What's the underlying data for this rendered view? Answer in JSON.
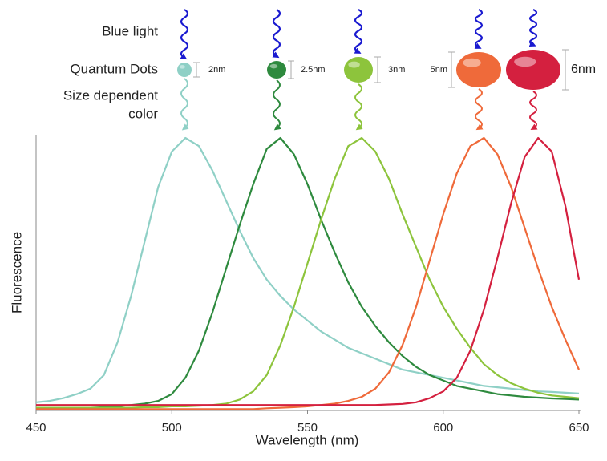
{
  "chart_data": {
    "type": "line",
    "xlabel": "Wavelength (nm)",
    "ylabel": "Fluorescence",
    "annotations": [
      "Blue light",
      "Quantum Dots",
      "Size dependent",
      "color"
    ],
    "xlim": [
      450,
      650
    ],
    "xticks": [
      450,
      500,
      550,
      600,
      650
    ],
    "ylim": [
      0,
      1
    ],
    "x": [
      450,
      455,
      460,
      465,
      470,
      475,
      480,
      485,
      490,
      495,
      500,
      505,
      510,
      515,
      520,
      525,
      530,
      535,
      540,
      545,
      550,
      555,
      560,
      565,
      570,
      575,
      580,
      585,
      590,
      595,
      600,
      605,
      610,
      615,
      620,
      625,
      630,
      635,
      640,
      645,
      650
    ],
    "series": [
      {
        "name": "2nm",
        "color": "#8fd0c6",
        "values": [
          0.03,
          0.035,
          0.045,
          0.06,
          0.08,
          0.13,
          0.25,
          0.42,
          0.62,
          0.82,
          0.95,
          1.0,
          0.97,
          0.88,
          0.77,
          0.66,
          0.56,
          0.48,
          0.42,
          0.37,
          0.33,
          0.29,
          0.26,
          0.23,
          0.21,
          0.19,
          0.17,
          0.15,
          0.14,
          0.13,
          0.12,
          0.11,
          0.1,
          0.09,
          0.085,
          0.08,
          0.075,
          0.07,
          0.068,
          0.065,
          0.062
        ]
      },
      {
        "name": "2.5nm",
        "color": "#2e8a3e",
        "values": [
          0.01,
          0.01,
          0.01,
          0.01,
          0.01,
          0.012,
          0.015,
          0.02,
          0.025,
          0.035,
          0.06,
          0.12,
          0.22,
          0.36,
          0.52,
          0.68,
          0.83,
          0.96,
          1.0,
          0.94,
          0.83,
          0.7,
          0.58,
          0.47,
          0.38,
          0.31,
          0.25,
          0.2,
          0.16,
          0.13,
          0.11,
          0.09,
          0.08,
          0.07,
          0.06,
          0.055,
          0.05,
          0.047,
          0.044,
          0.042,
          0.04
        ]
      },
      {
        "name": "3nm",
        "color": "#8dc43c",
        "values": [
          0.01,
          0.01,
          0.01,
          0.01,
          0.01,
          0.01,
          0.01,
          0.01,
          0.012,
          0.012,
          0.015,
          0.015,
          0.017,
          0.02,
          0.025,
          0.04,
          0.07,
          0.13,
          0.24,
          0.38,
          0.54,
          0.7,
          0.85,
          0.97,
          1.0,
          0.95,
          0.85,
          0.72,
          0.6,
          0.48,
          0.38,
          0.3,
          0.23,
          0.17,
          0.13,
          0.1,
          0.08,
          0.065,
          0.055,
          0.05,
          0.045
        ]
      },
      {
        "name": "5nm",
        "color": "#ef6a3a",
        "values": [
          0.005,
          0.005,
          0.005,
          0.005,
          0.005,
          0.005,
          0.005,
          0.005,
          0.005,
          0.005,
          0.005,
          0.005,
          0.005,
          0.005,
          0.005,
          0.005,
          0.005,
          0.008,
          0.01,
          0.012,
          0.015,
          0.02,
          0.025,
          0.035,
          0.05,
          0.08,
          0.14,
          0.24,
          0.38,
          0.55,
          0.72,
          0.87,
          0.97,
          1.0,
          0.94,
          0.82,
          0.67,
          0.52,
          0.38,
          0.26,
          0.15
        ]
      },
      {
        "name": "6nm",
        "color": "#d4203f",
        "values": [
          0.02,
          0.02,
          0.02,
          0.02,
          0.02,
          0.02,
          0.02,
          0.02,
          0.02,
          0.02,
          0.02,
          0.02,
          0.02,
          0.02,
          0.02,
          0.02,
          0.02,
          0.02,
          0.02,
          0.02,
          0.02,
          0.02,
          0.02,
          0.02,
          0.02,
          0.02,
          0.022,
          0.024,
          0.03,
          0.045,
          0.07,
          0.12,
          0.22,
          0.37,
          0.56,
          0.76,
          0.93,
          1.0,
          0.95,
          0.75,
          0.48
        ]
      }
    ]
  }
}
